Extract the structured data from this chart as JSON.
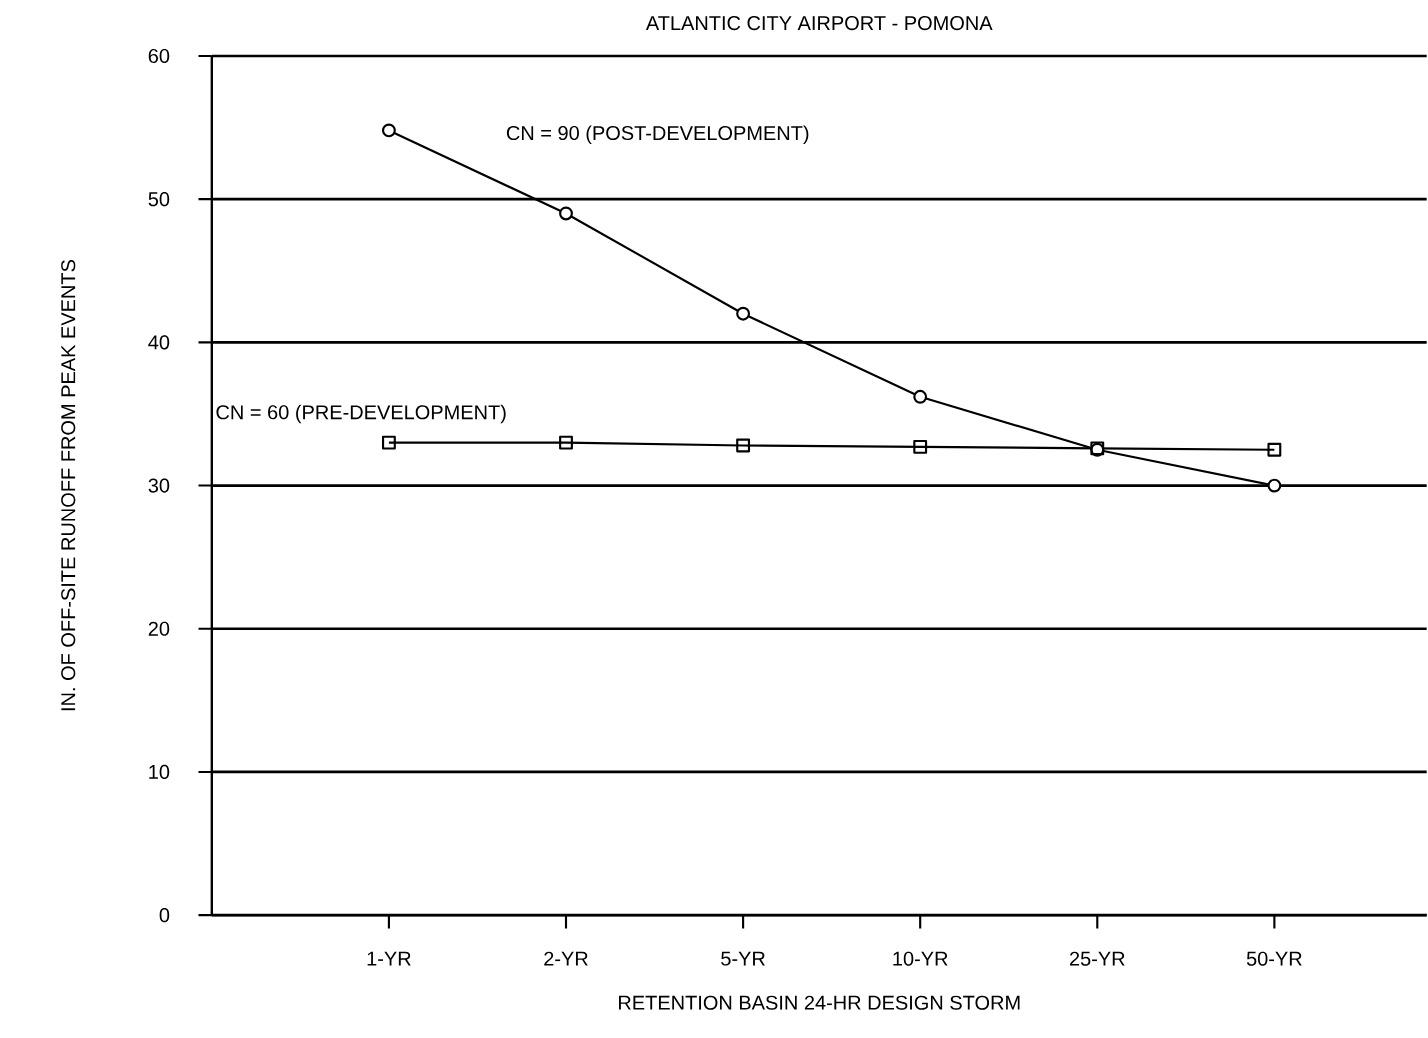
{
  "chart_data": {
    "type": "line",
    "title": "ATLANTIC CITY AIRPORT - POMONA",
    "xlabel": "RETENTION BASIN 24-HR DESIGN STORM",
    "ylabel": "IN. OF OFF-SITE RUNOFF FROM PEAK EVENTS",
    "categories": [
      "1-YR",
      "2-YR",
      "5-YR",
      "10-YR",
      "25-YR",
      "50-YR"
    ],
    "series": [
      {
        "color": "#000000",
        "marker": "circle",
        "values": [
          54.8,
          49.0,
          42.0,
          36.2,
          32.5,
          30.0
        ]
      },
      {
        "color": "#000000",
        "marker": "square",
        "values": [
          33.0,
          33.0,
          32.8,
          32.7,
          32.6,
          32.5
        ]
      }
    ],
    "annotations": [
      "CN = 90 (POST-DEVELOPMENT)",
      "CN = 60 (PRE-DEVELOPMENT)"
    ],
    "ylim": [
      0,
      60
    ],
    "yticks": [
      0,
      10,
      20,
      30,
      40,
      50,
      60
    ],
    "grid": "y",
    "line_style": "solid"
  }
}
